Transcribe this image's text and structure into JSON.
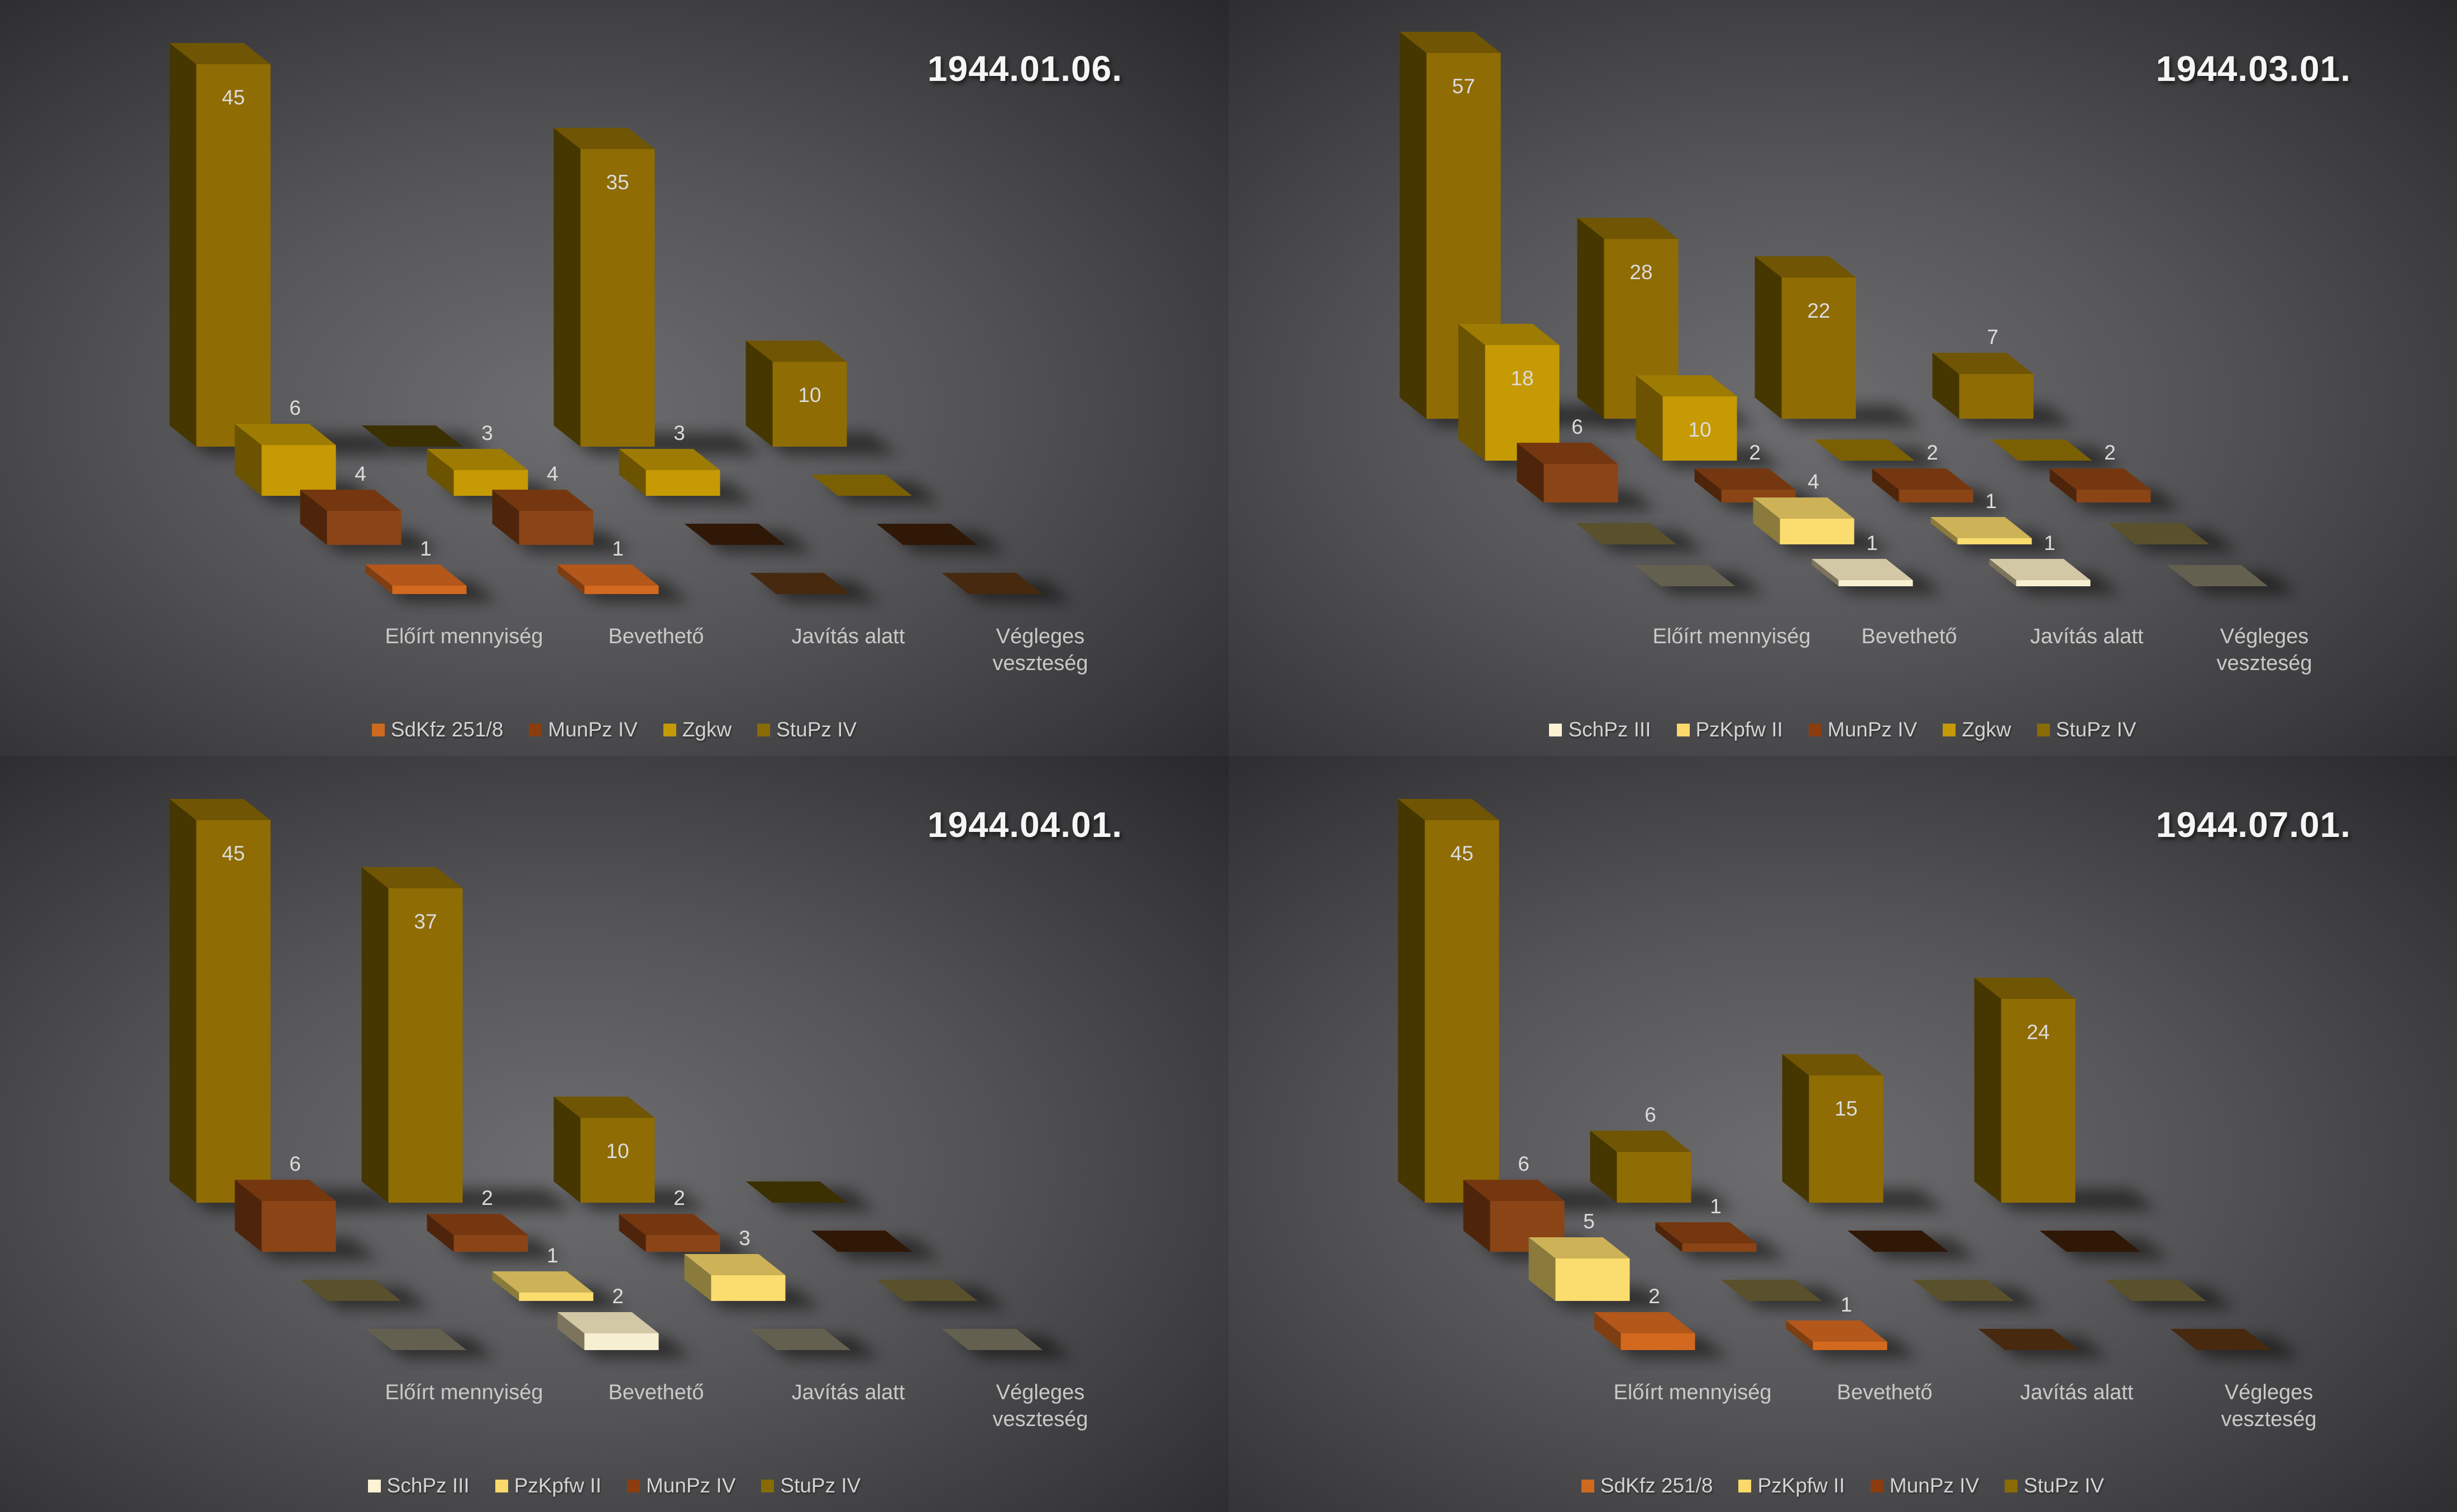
{
  "style": {
    "bg_center": "#6D6D6F",
    "bg_mid": "#565658",
    "bg_outer": "#3B3B3D",
    "bg_corner": "#27272A",
    "title_color": "#F5F5F5",
    "category_label_color": "#C9C9C9",
    "value_label_color": "#DCDCDC",
    "legend_text_color": "#D3D3D3",
    "shadow_color": "#000000"
  },
  "palette": {
    "SdKfz 251/8": {
      "front": "#D2691E",
      "top": "#B3571A",
      "side": "#7E3E12",
      "plate": "#46290F",
      "legend": "#CD6A1E"
    },
    "MunPz IV": {
      "front": "#8A4416",
      "top": "#753710",
      "side": "#4E250B",
      "plate": "#301807",
      "legend": "#8C3D0F"
    },
    "Zgkw": {
      "front": "#C69A04",
      "top": "#9E7B03",
      "side": "#6B5302",
      "plate": "#7A6003",
      "legend": "#C49A06"
    },
    "StuPz IV": {
      "front": "#8F6C04",
      "top": "#6F5504",
      "side": "#463700",
      "plate": "#3A3002",
      "legend": "#8A6A05"
    },
    "PzKpfw II": {
      "front": "#FBDC6E",
      "top": "#CDB258",
      "side": "#8A7A3C",
      "plate": "#59512B",
      "legend": "#FBD96B"
    },
    "SchPz III": {
      "front": "#F7EFD2",
      "top": "#D2C8A6",
      "side": "#7C745C",
      "plate": "#636050",
      "legend": "#FCF2D4"
    }
  },
  "chart_data": [
    {
      "type": "bar",
      "projection": "3d",
      "title": "1944.01.06.",
      "categories": [
        [
          "Előírt mennyiség"
        ],
        [
          "Bevethető"
        ],
        [
          "Javítás alatt"
        ],
        [
          "Végleges",
          "veszteség"
        ]
      ],
      "legend_position": "bottom",
      "grid": false,
      "series": [
        {
          "name": "SdKfz 251/8",
          "values": [
            1,
            1,
            0,
            0
          ]
        },
        {
          "name": "MunPz IV",
          "values": [
            4,
            4,
            0,
            0
          ]
        },
        {
          "name": "Zgkw",
          "values": [
            6,
            3,
            3,
            0
          ]
        },
        {
          "name": "StuPz IV",
          "values": [
            45,
            0,
            35,
            10
          ]
        }
      ]
    },
    {
      "type": "bar",
      "projection": "3d",
      "title": "1944.03.01.",
      "categories": [
        [
          "Előírt mennyiség"
        ],
        [
          "Bevethető"
        ],
        [
          "Javítás alatt"
        ],
        [
          "Végleges",
          "veszteség"
        ]
      ],
      "legend_position": "bottom",
      "grid": false,
      "series": [
        {
          "name": "SchPz III",
          "values": [
            0,
            1,
            1,
            0
          ]
        },
        {
          "name": "PzKpfw II",
          "values": [
            0,
            4,
            1,
            0
          ]
        },
        {
          "name": "MunPz IV",
          "values": [
            6,
            2,
            2,
            2
          ]
        },
        {
          "name": "Zgkw",
          "values": [
            18,
            10,
            0,
            0
          ]
        },
        {
          "name": "StuPz IV",
          "values": [
            57,
            28,
            22,
            7
          ]
        }
      ]
    },
    {
      "type": "bar",
      "projection": "3d",
      "title": "1944.04.01.",
      "categories": [
        [
          "Előírt mennyiség"
        ],
        [
          "Bevethető"
        ],
        [
          "Javítás alatt"
        ],
        [
          "Végleges",
          "veszteség"
        ]
      ],
      "legend_position": "bottom",
      "grid": false,
      "series": [
        {
          "name": "SchPz III",
          "values": [
            0,
            2,
            0,
            0
          ]
        },
        {
          "name": "PzKpfw II",
          "values": [
            0,
            1,
            3,
            0
          ]
        },
        {
          "name": "MunPz IV",
          "values": [
            6,
            2,
            2,
            0
          ]
        },
        {
          "name": "StuPz IV",
          "values": [
            45,
            37,
            10,
            0
          ]
        }
      ]
    },
    {
      "type": "bar",
      "projection": "3d",
      "title": "1944.07.01.",
      "categories": [
        [
          "Előírt mennyiség"
        ],
        [
          "Bevethető"
        ],
        [
          "Javítás alatt"
        ],
        [
          "Végleges",
          "veszteség"
        ]
      ],
      "legend_position": "bottom",
      "grid": false,
      "series": [
        {
          "name": "SdKfz 251/8",
          "values": [
            2,
            1,
            0,
            0
          ]
        },
        {
          "name": "PzKpfw II",
          "values": [
            5,
            0,
            0,
            0
          ]
        },
        {
          "name": "MunPz IV",
          "values": [
            6,
            1,
            0,
            0
          ]
        },
        {
          "name": "StuPz IV",
          "values": [
            45,
            6,
            15,
            24
          ]
        }
      ]
    }
  ]
}
